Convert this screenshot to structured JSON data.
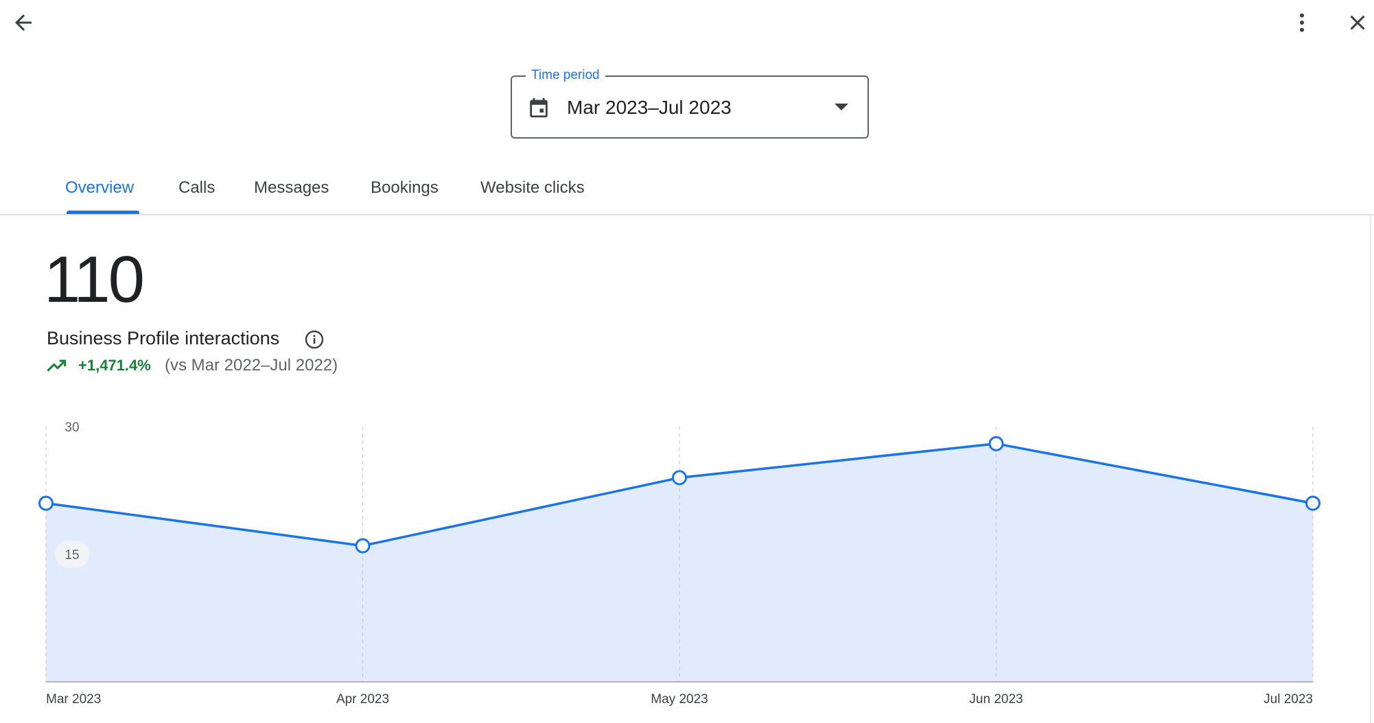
{
  "icons": {
    "back": "arrow-back-icon",
    "more": "more-vert-icon",
    "close": "close-icon",
    "calendar": "calendar-icon",
    "caret": "caret-down-icon",
    "info": "info-icon",
    "trend": "trending-up-icon"
  },
  "time_period": {
    "label": "Time period",
    "value": "Mar 2023–Jul 2023"
  },
  "tabs": [
    {
      "label": "Overview",
      "active": true
    },
    {
      "label": "Calls",
      "active": false
    },
    {
      "label": "Messages",
      "active": false
    },
    {
      "label": "Bookings",
      "active": false
    },
    {
      "label": "Website clicks",
      "active": false
    }
  ],
  "summary": {
    "total": "110",
    "label": "Business Profile interactions",
    "change": "+1,471.4%",
    "comparison": "(vs Mar 2022–Jul 2022)"
  },
  "colors": {
    "accent": "#1a73e8",
    "positive": "#188038",
    "area_fill": "#e2ebfc"
  },
  "chart_data": {
    "type": "area",
    "categories": [
      "Mar 2023",
      "Apr 2023",
      "May 2023",
      "Jun 2023",
      "Jul 2023"
    ],
    "values": [
      21,
      16,
      24,
      28,
      21
    ],
    "ylim": [
      0,
      30
    ],
    "yticks": [
      "30",
      "15"
    ],
    "grid": "vertical-dashed",
    "markers": "hollow-circle"
  }
}
